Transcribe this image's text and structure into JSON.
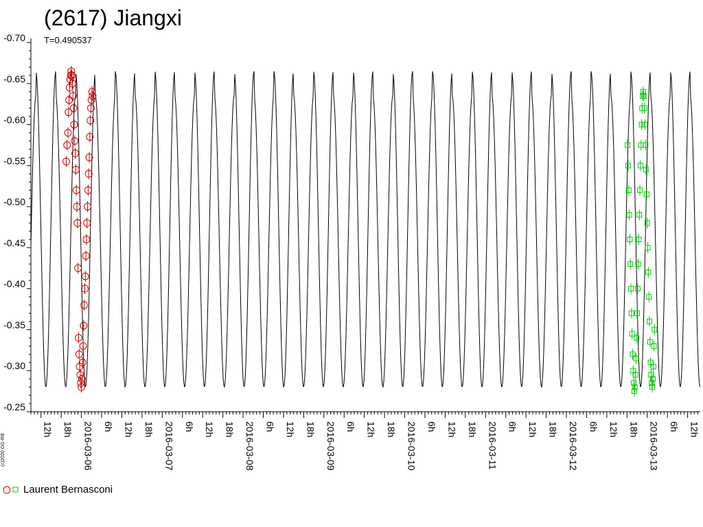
{
  "chart_data": {
    "type": "scatter",
    "title": "(2617) Jiangxi",
    "subtitle": "T=0.490537",
    "copyright": "(c)2020 OG-RB",
    "ylim": [
      -0.25,
      -0.7
    ],
    "y_ticks": [
      {
        "value": -0.7,
        "label": "-0.70"
      },
      {
        "value": -0.65,
        "label": "-0.65"
      },
      {
        "value": -0.6,
        "label": "-0.60"
      },
      {
        "value": -0.55,
        "label": "-0.55"
      },
      {
        "value": -0.5,
        "label": "-0.50"
      },
      {
        "value": -0.45,
        "label": "-0.45"
      },
      {
        "value": -0.4,
        "label": "-0.40"
      },
      {
        "value": -0.35,
        "label": "-0.35"
      },
      {
        "value": -0.3,
        "label": "-0.30"
      },
      {
        "value": -0.25,
        "label": "-0.25"
      }
    ],
    "xlim": [
      "2016-03-05T09:00",
      "2016-03-13T15:45"
    ],
    "x_ticks": [
      {
        "value": "2016-03-05T12:00",
        "label": "12h"
      },
      {
        "value": "2016-03-05T18:00",
        "label": "18h"
      },
      {
        "value": "2016-03-06T00:00",
        "label": "2016-03-06"
      },
      {
        "value": "2016-03-06T06:00",
        "label": "6h"
      },
      {
        "value": "2016-03-06T12:00",
        "label": "12h"
      },
      {
        "value": "2016-03-06T18:00",
        "label": "18h"
      },
      {
        "value": "2016-03-07T00:00",
        "label": "2016-03-07"
      },
      {
        "value": "2016-03-07T06:00",
        "label": "6h"
      },
      {
        "value": "2016-03-07T12:00",
        "label": "12h"
      },
      {
        "value": "2016-03-07T18:00",
        "label": "18h"
      },
      {
        "value": "2016-03-08T00:00",
        "label": "2016-03-08"
      },
      {
        "value": "2016-03-08T06:00",
        "label": "6h"
      },
      {
        "value": "2016-03-08T12:00",
        "label": "12h"
      },
      {
        "value": "2016-03-08T18:00",
        "label": "18h"
      },
      {
        "value": "2016-03-09T00:00",
        "label": "2016-03-09"
      },
      {
        "value": "2016-03-09T06:00",
        "label": "6h"
      },
      {
        "value": "2016-03-09T12:00",
        "label": "12h"
      },
      {
        "value": "2016-03-09T18:00",
        "label": "18h"
      },
      {
        "value": "2016-03-10T00:00",
        "label": "2016-03-10"
      },
      {
        "value": "2016-03-10T06:00",
        "label": "6h"
      },
      {
        "value": "2016-03-10T12:00",
        "label": "12h"
      },
      {
        "value": "2016-03-10T18:00",
        "label": "18h"
      },
      {
        "value": "2016-03-11T00:00",
        "label": "2016-03-11"
      },
      {
        "value": "2016-03-11T06:00",
        "label": "6h"
      },
      {
        "value": "2016-03-11T12:00",
        "label": "12h"
      },
      {
        "value": "2016-03-11T18:00",
        "label": "18h"
      },
      {
        "value": "2016-03-12T00:00",
        "label": "2016-03-12"
      },
      {
        "value": "2016-03-12T06:00",
        "label": "6h"
      },
      {
        "value": "2016-03-12T12:00",
        "label": "12h"
      },
      {
        "value": "2016-03-12T18:00",
        "label": "18h"
      },
      {
        "value": "2016-03-13T00:00",
        "label": "2016-03-13"
      },
      {
        "value": "2016-03-13T06:00",
        "label": "6h"
      },
      {
        "value": "2016-03-13T12:00",
        "label": "12h"
      }
    ],
    "model_curve": {
      "period_hours": 11.773,
      "color": "#000000",
      "cycles": [
        {
          "min_start": -0.28,
          "max": -0.665,
          "min_end": -0.28
        },
        {
          "min_start": -0.28,
          "max": -0.635,
          "min_end": -0.28
        }
      ],
      "phase_anchor": {
        "time": "2016-03-05T10:30",
        "state": "primary-max"
      }
    },
    "series": [
      {
        "name": "Laurent Bernasconi",
        "color": "#cc0000",
        "marker": "circle",
        "points": [
          {
            "t": "2016-03-05T19:30",
            "y": -0.555
          },
          {
            "t": "2016-03-05T19:45",
            "y": -0.575
          },
          {
            "t": "2016-03-05T20:00",
            "y": -0.59
          },
          {
            "t": "2016-03-05T20:10",
            "y": -0.615
          },
          {
            "t": "2016-03-05T20:20",
            "y": -0.63
          },
          {
            "t": "2016-03-05T20:30",
            "y": -0.645
          },
          {
            "t": "2016-03-05T20:40",
            "y": -0.655
          },
          {
            "t": "2016-03-05T20:50",
            "y": -0.66
          },
          {
            "t": "2016-03-05T21:00",
            "y": -0.665
          },
          {
            "t": "2016-03-05T21:10",
            "y": -0.66
          },
          {
            "t": "2016-03-05T21:20",
            "y": -0.65
          },
          {
            "t": "2016-03-05T21:30",
            "y": -0.635
          },
          {
            "t": "2016-03-05T21:40",
            "y": -0.62
          },
          {
            "t": "2016-03-05T21:50",
            "y": -0.6
          },
          {
            "t": "2016-03-05T22:00",
            "y": -0.58
          },
          {
            "t": "2016-03-05T22:10",
            "y": -0.565
          },
          {
            "t": "2016-03-05T22:20",
            "y": -0.545
          },
          {
            "t": "2016-03-05T22:30",
            "y": -0.52
          },
          {
            "t": "2016-03-05T22:40",
            "y": -0.5
          },
          {
            "t": "2016-03-05T22:50",
            "y": -0.48
          },
          {
            "t": "2016-03-05T23:00",
            "y": -0.425
          },
          {
            "t": "2016-03-05T23:10",
            "y": -0.34
          },
          {
            "t": "2016-03-05T23:20",
            "y": -0.32
          },
          {
            "t": "2016-03-05T23:30",
            "y": -0.305
          },
          {
            "t": "2016-03-05T23:40",
            "y": -0.295
          },
          {
            "t": "2016-03-05T23:50",
            "y": -0.285
          },
          {
            "t": "2016-03-06T00:00",
            "y": -0.28
          },
          {
            "t": "2016-03-06T00:10",
            "y": -0.29
          },
          {
            "t": "2016-03-06T00:20",
            "y": -0.31
          },
          {
            "t": "2016-03-06T00:30",
            "y": -0.33
          },
          {
            "t": "2016-03-06T00:40",
            "y": -0.355
          },
          {
            "t": "2016-03-06T00:50",
            "y": -0.38
          },
          {
            "t": "2016-03-06T01:00",
            "y": -0.4
          },
          {
            "t": "2016-03-06T01:10",
            "y": -0.415
          },
          {
            "t": "2016-03-06T01:20",
            "y": -0.44
          },
          {
            "t": "2016-03-06T01:30",
            "y": -0.46
          },
          {
            "t": "2016-03-06T01:40",
            "y": -0.48
          },
          {
            "t": "2016-03-06T01:50",
            "y": -0.5
          },
          {
            "t": "2016-03-06T02:00",
            "y": -0.52
          },
          {
            "t": "2016-03-06T02:10",
            "y": -0.54
          },
          {
            "t": "2016-03-06T02:20",
            "y": -0.56
          },
          {
            "t": "2016-03-06T02:30",
            "y": -0.585
          },
          {
            "t": "2016-03-06T02:40",
            "y": -0.605
          },
          {
            "t": "2016-03-06T02:50",
            "y": -0.62
          },
          {
            "t": "2016-03-06T03:00",
            "y": -0.63
          },
          {
            "t": "2016-03-06T03:10",
            "y": -0.64
          },
          {
            "t": "2016-03-06T03:20",
            "y": -0.635
          }
        ]
      },
      {
        "name": "Laurent Bernasconi",
        "color": "#00cc00",
        "marker": "square",
        "points": [
          {
            "t": "2016-03-12T18:10",
            "y": -0.575
          },
          {
            "t": "2016-03-12T18:20",
            "y": -0.55
          },
          {
            "t": "2016-03-12T18:30",
            "y": -0.52
          },
          {
            "t": "2016-03-12T18:40",
            "y": -0.49
          },
          {
            "t": "2016-03-12T18:50",
            "y": -0.46
          },
          {
            "t": "2016-03-12T19:00",
            "y": -0.43
          },
          {
            "t": "2016-03-12T19:10",
            "y": -0.4
          },
          {
            "t": "2016-03-12T19:20",
            "y": -0.37
          },
          {
            "t": "2016-03-12T19:30",
            "y": -0.345
          },
          {
            "t": "2016-03-12T19:40",
            "y": -0.32
          },
          {
            "t": "2016-03-12T19:50",
            "y": -0.3
          },
          {
            "t": "2016-03-12T20:00",
            "y": -0.285
          },
          {
            "t": "2016-03-12T20:10",
            "y": -0.275
          },
          {
            "t": "2016-03-12T20:20",
            "y": -0.28
          },
          {
            "t": "2016-03-12T20:30",
            "y": -0.295
          },
          {
            "t": "2016-03-12T20:40",
            "y": -0.315
          },
          {
            "t": "2016-03-12T20:50",
            "y": -0.34
          },
          {
            "t": "2016-03-12T21:00",
            "y": -0.37
          },
          {
            "t": "2016-03-12T21:10",
            "y": -0.4
          },
          {
            "t": "2016-03-12T21:20",
            "y": -0.43
          },
          {
            "t": "2016-03-12T21:30",
            "y": -0.46
          },
          {
            "t": "2016-03-12T21:40",
            "y": -0.49
          },
          {
            "t": "2016-03-12T21:50",
            "y": -0.52
          },
          {
            "t": "2016-03-12T22:00",
            "y": -0.55
          },
          {
            "t": "2016-03-12T22:10",
            "y": -0.575
          },
          {
            "t": "2016-03-12T22:20",
            "y": -0.6
          },
          {
            "t": "2016-03-12T22:30",
            "y": -0.62
          },
          {
            "t": "2016-03-12T22:40",
            "y": -0.635
          },
          {
            "t": "2016-03-12T22:50",
            "y": -0.64
          },
          {
            "t": "2016-03-12T23:00",
            "y": -0.635
          },
          {
            "t": "2016-03-12T23:10",
            "y": -0.62
          },
          {
            "t": "2016-03-12T23:20",
            "y": -0.6
          },
          {
            "t": "2016-03-12T23:30",
            "y": -0.575
          },
          {
            "t": "2016-03-12T23:40",
            "y": -0.545
          },
          {
            "t": "2016-03-12T23:50",
            "y": -0.515
          },
          {
            "t": "2016-03-13T00:00",
            "y": -0.48
          },
          {
            "t": "2016-03-13T00:10",
            "y": -0.45
          },
          {
            "t": "2016-03-13T00:20",
            "y": -0.42
          },
          {
            "t": "2016-03-13T00:30",
            "y": -0.39
          },
          {
            "t": "2016-03-13T00:40",
            "y": -0.36
          },
          {
            "t": "2016-03-13T00:50",
            "y": -0.335
          },
          {
            "t": "2016-03-13T01:00",
            "y": -0.31
          },
          {
            "t": "2016-03-13T01:10",
            "y": -0.295
          },
          {
            "t": "2016-03-13T01:20",
            "y": -0.285
          },
          {
            "t": "2016-03-13T01:30",
            "y": -0.28
          },
          {
            "t": "2016-03-13T01:40",
            "y": -0.29
          },
          {
            "t": "2016-03-13T01:50",
            "y": -0.305
          },
          {
            "t": "2016-03-13T02:00",
            "y": -0.33
          },
          {
            "t": "2016-03-13T02:10",
            "y": -0.35
          }
        ]
      }
    ],
    "legend": {
      "label": "Laurent Bernasconi",
      "placement": "bottom-left"
    }
  }
}
